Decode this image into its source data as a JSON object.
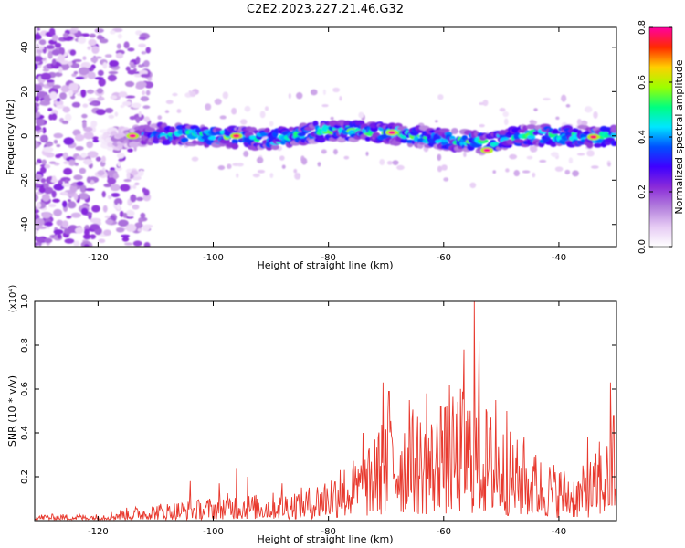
{
  "title": "C2E2.2023.227.21.46.G32",
  "colors": {
    "snr_line": "#e8392e",
    "colormap": [
      "#ffffff",
      "#e6cbf4",
      "#b27ddc",
      "#8a2bd9",
      "#3f00ff",
      "#0050ff",
      "#00e6ff",
      "#00ff80",
      "#9cff00",
      "#ffd000",
      "#ff2a00",
      "#ff00a0"
    ]
  },
  "chart_data": [
    {
      "type": "heatmap",
      "name": "spectrogram",
      "xlabel": "Height of straight line (km)",
      "ylabel": "Frequency (Hz)",
      "xlim": [
        -131,
        -30
      ],
      "ylim": [
        -50,
        49
      ],
      "xticks": [
        -120,
        -100,
        -80,
        -60,
        -40
      ],
      "yticks": [
        -40,
        -20,
        0,
        20,
        40
      ],
      "colorbar": {
        "label": "Normalized spectral amplitude",
        "range": [
          0.0,
          0.8
        ],
        "ticks": [
          0.0,
          0.2,
          0.4,
          0.6,
          0.8
        ]
      },
      "band": {
        "center_freq_hz": [
          {
            "x": -117,
            "y": -1.5
          },
          {
            "x": -110,
            "y": 1
          },
          {
            "x": -100,
            "y": 0
          },
          {
            "x": -90,
            "y": -1.5
          },
          {
            "x": -80,
            "y": 2.5
          },
          {
            "x": -70,
            "y": 1.5
          },
          {
            "x": -60,
            "y": -1.5
          },
          {
            "x": -52,
            "y": -3
          },
          {
            "x": -45,
            "y": 0.5
          },
          {
            "x": -30,
            "y": -0.5
          }
        ],
        "half_width_hz": 3.5
      },
      "peaks": [
        {
          "x": -114,
          "y": 0,
          "amp": 0.8
        },
        {
          "x": -96,
          "y": 0,
          "amp": 0.78
        },
        {
          "x": -69,
          "y": 1.5,
          "amp": 0.8
        },
        {
          "x": -52.5,
          "y": -6.5,
          "amp": 0.8
        },
        {
          "x": -34,
          "y": -0.5,
          "amp": 0.78
        }
      ]
    },
    {
      "type": "line",
      "name": "snr",
      "xlabel": "Height of straight line (km)",
      "ylabel": "SNR (10 * v/v)",
      "multiplier": "(x10⁴)",
      "xlim": [
        -131,
        -30
      ],
      "ylim": [
        0,
        1.0
      ],
      "xticks": [
        -120,
        -100,
        -80,
        -60,
        -40
      ],
      "yticks": [
        0.2,
        0.4,
        0.6,
        0.8,
        1.0
      ],
      "series": [
        {
          "envelope": [
            [
              -131,
              0.03
            ],
            [
              -120,
              0.03
            ],
            [
              -115,
              0.06
            ],
            [
              -110,
              0.08
            ],
            [
              -102,
              0.1
            ],
            [
              -97,
              0.13
            ],
            [
              -92,
              0.12
            ],
            [
              -87,
              0.14
            ],
            [
              -83,
              0.16
            ],
            [
              -80,
              0.22
            ],
            [
              -76,
              0.28
            ],
            [
              -73,
              0.33
            ],
            [
              -71,
              0.45
            ],
            [
              -69,
              0.55
            ],
            [
              -66,
              0.52
            ],
            [
              -62,
              0.5
            ],
            [
              -59,
              0.55
            ],
            [
              -57,
              0.62
            ],
            [
              -55,
              0.6
            ],
            [
              -53,
              0.55
            ],
            [
              -50,
              0.45
            ],
            [
              -48,
              0.4
            ],
            [
              -45,
              0.32
            ],
            [
              -40,
              0.26
            ],
            [
              -37,
              0.22
            ],
            [
              -34,
              0.3
            ],
            [
              -31,
              0.4
            ],
            [
              -30,
              0.4
            ]
          ],
          "spikes": [
            {
              "x": -104,
              "y": 0.18
            },
            {
              "x": -99,
              "y": 0.17
            },
            {
              "x": -96,
              "y": 0.24
            },
            {
              "x": -94,
              "y": 0.2
            },
            {
              "x": -88,
              "y": 0.17
            },
            {
              "x": -78,
              "y": 0.23
            },
            {
              "x": -74,
              "y": 0.4
            },
            {
              "x": -72,
              "y": 0.37
            },
            {
              "x": -70.5,
              "y": 0.63
            },
            {
              "x": -69.5,
              "y": 0.59
            },
            {
              "x": -66,
              "y": 0.55
            },
            {
              "x": -63,
              "y": 0.58
            },
            {
              "x": -60.5,
              "y": 0.52
            },
            {
              "x": -59,
              "y": 0.62
            },
            {
              "x": -56.5,
              "y": 0.78
            },
            {
              "x": -54.7,
              "y": 1.0
            },
            {
              "x": -53.8,
              "y": 0.82
            },
            {
              "x": -51,
              "y": 0.55
            },
            {
              "x": -49,
              "y": 0.5
            },
            {
              "x": -46,
              "y": 0.38
            },
            {
              "x": -44,
              "y": 0.3
            },
            {
              "x": -35,
              "y": 0.38
            },
            {
              "x": -33,
              "y": 0.36
            },
            {
              "x": -31,
              "y": 0.63
            },
            {
              "x": -30.5,
              "y": 0.48
            }
          ]
        }
      ]
    }
  ]
}
